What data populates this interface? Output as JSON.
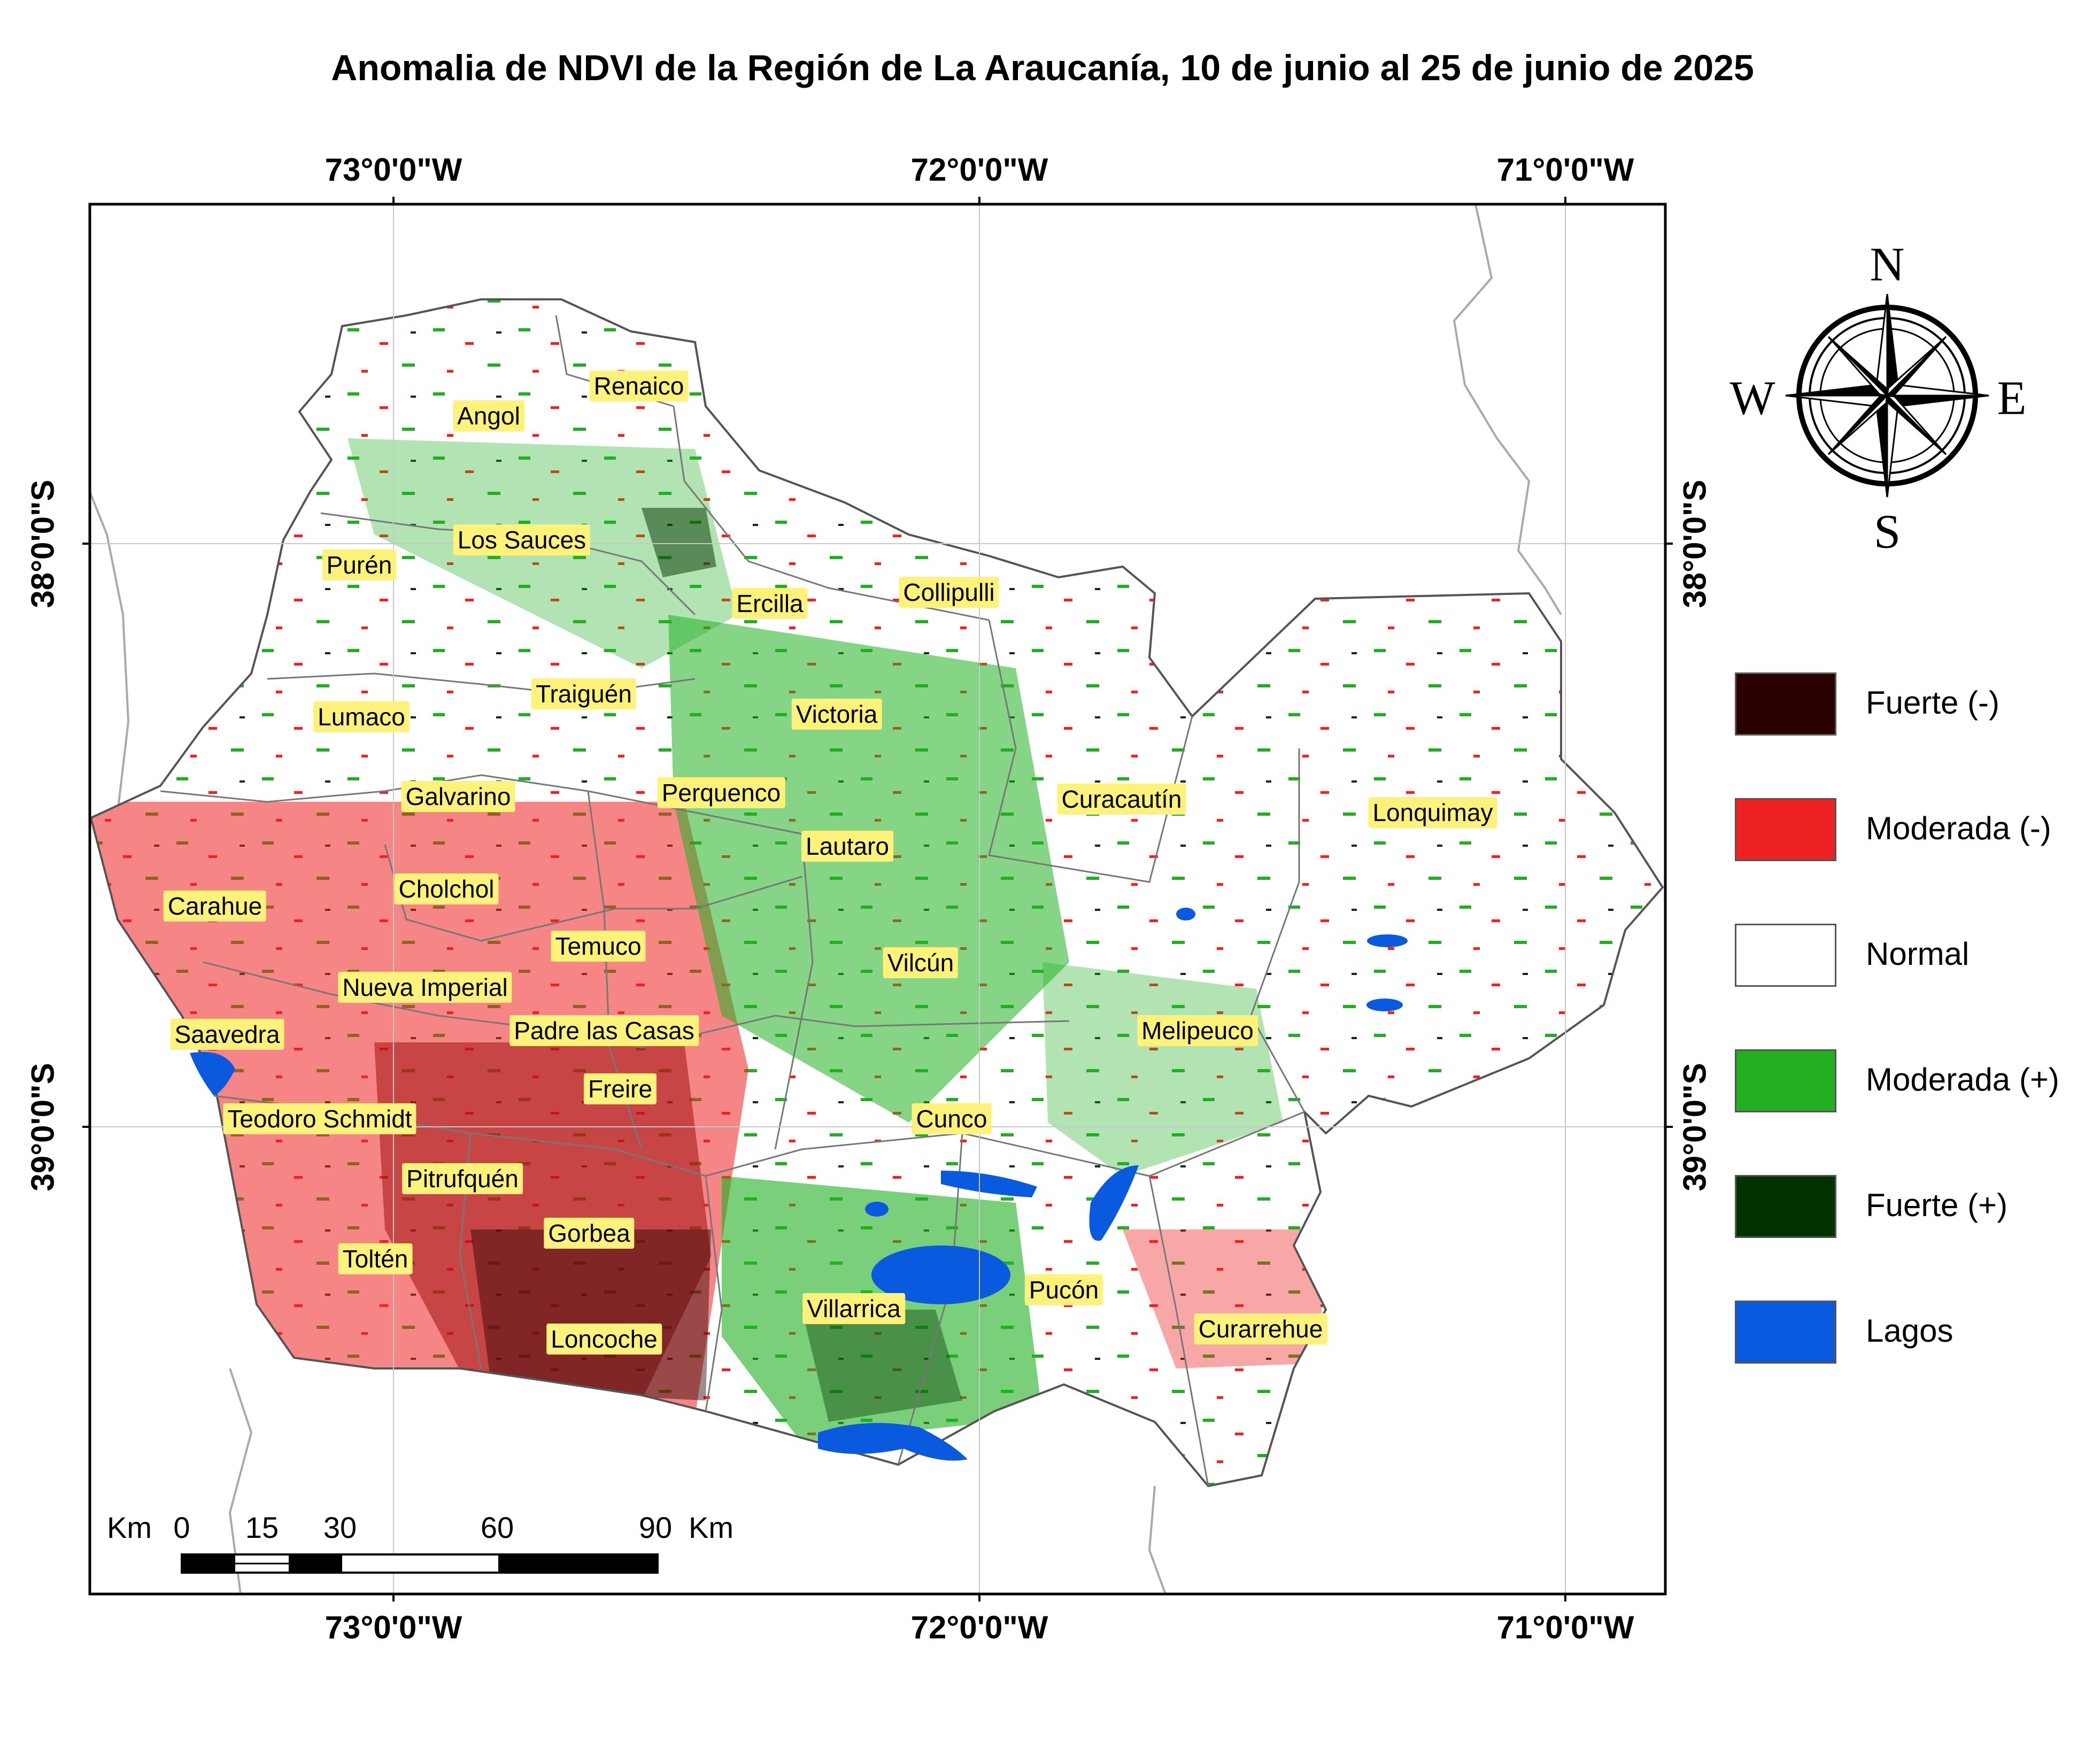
{
  "title": "Anomalia de NDVI de la Región de La Araucanía, 10 de junio al 25 de junio de 2025",
  "longitude_ticks": [
    "73°0'0\"W",
    "72°0'0\"W",
    "71°0'0\"W"
  ],
  "latitude_ticks": [
    "38°0'0\"S",
    "39°0'0\"S"
  ],
  "legend": [
    {
      "label": "Fuerte (-)",
      "color": "#2a0000"
    },
    {
      "label": "Moderada (-)",
      "color": "#ee2222"
    },
    {
      "label": "Normal",
      "color": "#ffffff"
    },
    {
      "label": "Moderada (+)",
      "color": "#22b022"
    },
    {
      "label": "Fuerte (+)",
      "color": "#003300"
    },
    {
      "label": "Lagos",
      "color": "#0a5ae0"
    }
  ],
  "places": [
    "Renaico",
    "Angol",
    "Los Sauces",
    "Purén",
    "Ercilla",
    "Collipulli",
    "Traiguén",
    "Lumaco",
    "Victoria",
    "Galvarino",
    "Perquenco",
    "Curacautín",
    "Lonquimay",
    "Lautaro",
    "Cholchol",
    "Carahue",
    "Temuco",
    "Vilcún",
    "Nueva Imperial",
    "Saavedra",
    "Padre las Casas",
    "Melipeuco",
    "Freire",
    "Teodoro Schmidt",
    "Cunco",
    "Pitrufquén",
    "Gorbea",
    "Toltén",
    "Pucón",
    "Villarrica",
    "Curarrehue",
    "Loncoche"
  ],
  "scale_bar": {
    "unit_left": "Km",
    "unit_right": "Km",
    "ticks": [
      "0",
      "15",
      "30",
      "60",
      "90"
    ]
  },
  "compass": {
    "n": "N",
    "s": "S",
    "e": "E",
    "w": "W"
  }
}
